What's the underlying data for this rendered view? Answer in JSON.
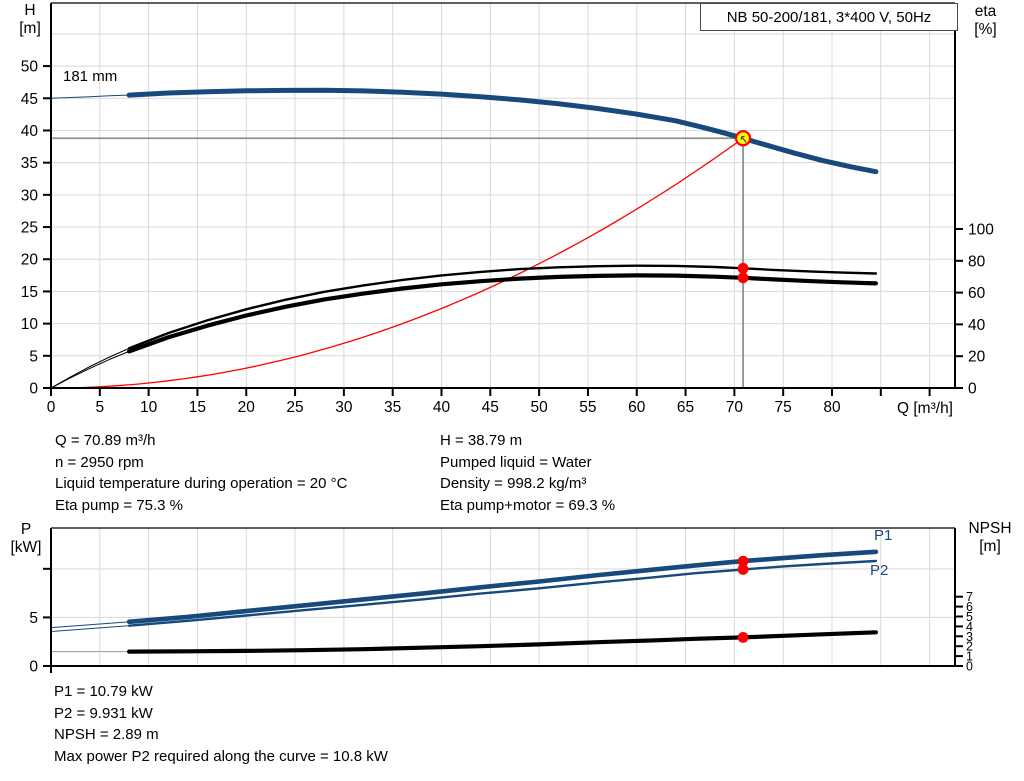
{
  "title_box": "NB 50-200/181, 3*400 V, 50Hz",
  "info_mid_left": [
    "Q = 70.89 m³/h",
    "n = 2950 rpm",
    "Liquid temperature during operation = 20 °C",
    "Eta pump = 75.3 %"
  ],
  "info_mid_right": [
    "H = 38.79 m",
    "Pumped liquid = Water",
    "Density = 998.2 kg/m³",
    "Eta pump+motor = 69.3 %"
  ],
  "info_bottom": [
    "P1 = 10.79 kW",
    "P2 = 9.931 kW",
    "NPSH = 2.89 m",
    "Max power P2 required along the curve = 10.8 kW"
  ],
  "colors": {
    "curve_blue": "#17497D",
    "curve_black": "#000000",
    "system_red": "#ff0000",
    "marker_red": "#ff0000",
    "duty_yellow": "#ffff00",
    "grid": "#d9d9d9",
    "crosshair": "#909090",
    "thin_gray": "#9a9a9a",
    "axis_black": "#000000"
  },
  "chart_data": [
    {
      "type": "line",
      "title": "NB 50-200/181, 3*400 V, 50Hz",
      "annotation": "181 mm",
      "operating_range_start_q": 8,
      "x_axis": {
        "label": "Q [m³/h]",
        "min": 0,
        "max": 92.6,
        "labeled_ticks": [
          0,
          5,
          10,
          15,
          20,
          25,
          30,
          35,
          40,
          45,
          50,
          55,
          60,
          65,
          70,
          75,
          80
        ],
        "unlabeled_ticks": [
          85,
          90
        ],
        "grid_step": 5
      },
      "y_left": {
        "name": "H",
        "unit": "[m]",
        "min": 0,
        "max": 59.8,
        "labeled_ticks": [
          0,
          5,
          10,
          15,
          20,
          25,
          30,
          35,
          40,
          45,
          50
        ],
        "grid_max": 55
      },
      "y_right": {
        "name": "eta",
        "unit": "[%]",
        "min": 0,
        "max": 100,
        "labeled_ticks": [
          0,
          20,
          40,
          60,
          80,
          100
        ]
      },
      "duty_point": {
        "q": 70.89,
        "h": 38.79
      },
      "eta_markers": [
        {
          "q": 70.89,
          "eta": 75.3,
          "series": "eta_pump"
        },
        {
          "q": 70.89,
          "eta": 69.3,
          "series": "eta_pump_motor"
        }
      ],
      "series": [
        {
          "id": "head_181mm",
          "axis": "h",
          "color": "blue",
          "width": 5,
          "points": [
            [
              0,
              45.0
            ],
            [
              2,
              45.12
            ],
            [
              4,
              45.25
            ],
            [
              6,
              45.38
            ],
            [
              8,
              45.5
            ],
            [
              12,
              45.82
            ],
            [
              16,
              46.02
            ],
            [
              20,
              46.16
            ],
            [
              24,
              46.23
            ],
            [
              28,
              46.25
            ],
            [
              32,
              46.15
            ],
            [
              36,
              45.95
            ],
            [
              40,
              45.65
            ],
            [
              44,
              45.25
            ],
            [
              48,
              44.75
            ],
            [
              52,
              44.15
            ],
            [
              56,
              43.42
            ],
            [
              60,
              42.55
            ],
            [
              64,
              41.5
            ],
            [
              67,
              40.4
            ],
            [
              69,
              39.6
            ],
            [
              70.89,
              38.79
            ],
            [
              73,
              37.85
            ],
            [
              76,
              36.55
            ],
            [
              79,
              35.35
            ],
            [
              82,
              34.35
            ],
            [
              84.5,
              33.6
            ]
          ]
        },
        {
          "id": "eta_pump",
          "axis": "eta",
          "color": "black",
          "width": 2.4,
          "points": [
            [
              0,
              0
            ],
            [
              2,
              7
            ],
            [
              4,
              13.5
            ],
            [
              6,
              19.5
            ],
            [
              8,
              25
            ],
            [
              12,
              34.5
            ],
            [
              16,
              42.5
            ],
            [
              20,
              49.5
            ],
            [
              24,
              55.5
            ],
            [
              28,
              60.5
            ],
            [
              32,
              64.5
            ],
            [
              36,
              68
            ],
            [
              40,
              70.8
            ],
            [
              44,
              73
            ],
            [
              48,
              74.8
            ],
            [
              52,
              75.9
            ],
            [
              56,
              76.6
            ],
            [
              60,
              76.9
            ],
            [
              64,
              76.8
            ],
            [
              68,
              76.1
            ],
            [
              70.89,
              75.3
            ],
            [
              74,
              74.3
            ],
            [
              78,
              73.2
            ],
            [
              81,
              72.6
            ],
            [
              84.5,
              72
            ]
          ]
        },
        {
          "id": "eta_pump_motor",
          "axis": "eta",
          "color": "black",
          "width": 4.2,
          "points": [
            [
              0,
              0
            ],
            [
              2,
              6.4
            ],
            [
              4,
              12.4
            ],
            [
              6,
              18
            ],
            [
              8,
              23
            ],
            [
              12,
              31.8
            ],
            [
              16,
              39.2
            ],
            [
              20,
              45.6
            ],
            [
              24,
              51.1
            ],
            [
              28,
              55.7
            ],
            [
              32,
              59.4
            ],
            [
              36,
              62.6
            ],
            [
              40,
              65.2
            ],
            [
              44,
              67.2
            ],
            [
              48,
              68.8
            ],
            [
              52,
              69.9
            ],
            [
              56,
              70.5
            ],
            [
              60,
              70.8
            ],
            [
              64,
              70.7
            ],
            [
              68,
              70
            ],
            [
              70.89,
              69.3
            ],
            [
              74,
              68.3
            ],
            [
              78,
              67.2
            ],
            [
              81,
              66.5
            ],
            [
              84.5,
              65.8
            ]
          ]
        },
        {
          "id": "system_curve",
          "axis": "h",
          "color": "red",
          "width": 1.3,
          "shape": "quadratic_through_origin",
          "end": [
            70.89,
            38.79
          ]
        }
      ]
    },
    {
      "type": "line",
      "operating_range_start_q": 8,
      "x_axis": {
        "label": "",
        "min": 0,
        "max": 92.6,
        "grid_step": 5
      },
      "y_left": {
        "name": "P",
        "unit": "[kW]",
        "min": 0,
        "max": 14.2,
        "labeled_ticks": [
          0,
          5
        ],
        "unlabeled_ticks": [
          10
        ],
        "grid_ticks": [
          5,
          10
        ]
      },
      "y_right": {
        "name": "NPSH",
        "unit": "[m]",
        "min": 0,
        "max": 13.9,
        "labeled_ticks": [
          0,
          1,
          2,
          3,
          4,
          5,
          6,
          7
        ]
      },
      "series_labels": {
        "p1": "P1",
        "p2": "P2"
      },
      "duty_markers": [
        {
          "q": 70.89,
          "value": 10.79,
          "axis": "p",
          "series": "P1"
        },
        {
          "q": 70.89,
          "value": 9.931,
          "axis": "p",
          "series": "P2"
        },
        {
          "q": 70.89,
          "value": 2.89,
          "axis": "npsh",
          "series": "NPSH"
        }
      ],
      "series": [
        {
          "id": "P1",
          "axis": "p",
          "color": "blue",
          "width": 4.6,
          "points": [
            [
              0,
              3.95
            ],
            [
              4,
              4.25
            ],
            [
              8,
              4.55
            ],
            [
              14,
              5.05
            ],
            [
              20,
              5.65
            ],
            [
              26,
              6.25
            ],
            [
              32,
              6.85
            ],
            [
              38,
              7.45
            ],
            [
              44,
              8.1
            ],
            [
              50,
              8.7
            ],
            [
              56,
              9.35
            ],
            [
              62,
              9.95
            ],
            [
              66,
              10.35
            ],
            [
              70.89,
              10.79
            ],
            [
              75,
              11.1
            ],
            [
              79,
              11.4
            ],
            [
              84.5,
              11.75
            ]
          ]
        },
        {
          "id": "P2",
          "axis": "p",
          "color": "blue",
          "width": 2.4,
          "points": [
            [
              0,
              3.55
            ],
            [
              4,
              3.85
            ],
            [
              8,
              4.15
            ],
            [
              14,
              4.65
            ],
            [
              20,
              5.2
            ],
            [
              26,
              5.75
            ],
            [
              32,
              6.3
            ],
            [
              38,
              6.85
            ],
            [
              44,
              7.45
            ],
            [
              50,
              8.0
            ],
            [
              56,
              8.6
            ],
            [
              62,
              9.15
            ],
            [
              66,
              9.55
            ],
            [
              70.89,
              9.93
            ],
            [
              75,
              10.25
            ],
            [
              79,
              10.5
            ],
            [
              84.5,
              10.8
            ]
          ]
        },
        {
          "id": "NPSH",
          "axis": "npsh",
          "color": "black",
          "width": 4.2,
          "thin_color": "gray",
          "points": [
            [
              0,
              1.45
            ],
            [
              8,
              1.45
            ],
            [
              14,
              1.48
            ],
            [
              20,
              1.53
            ],
            [
              26,
              1.6
            ],
            [
              32,
              1.7
            ],
            [
              38,
              1.85
            ],
            [
              44,
              2.0
            ],
            [
              50,
              2.18
            ],
            [
              56,
              2.4
            ],
            [
              62,
              2.6
            ],
            [
              66,
              2.75
            ],
            [
              70.89,
              2.89
            ],
            [
              75,
              3.05
            ],
            [
              79,
              3.2
            ],
            [
              84.5,
              3.4
            ]
          ]
        }
      ]
    }
  ]
}
